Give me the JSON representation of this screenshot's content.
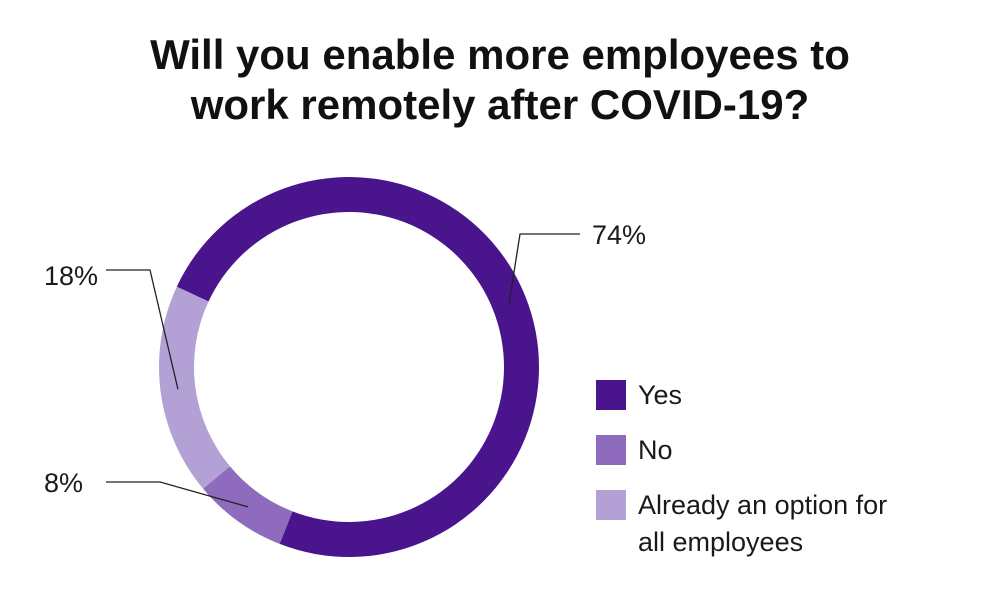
{
  "chart_data": {
    "type": "pie",
    "title_lines": [
      "Will you enable more employees to",
      "work remotely after COVID-19?"
    ],
    "slices": [
      {
        "label": "Yes",
        "value": 74,
        "value_label": "74%",
        "color": "#4a148c"
      },
      {
        "label": "No",
        "value": 8,
        "value_label": "8%",
        "color": "#8e6bbd"
      },
      {
        "label": "Already an option for all employees",
        "value": 18,
        "value_label": "18%",
        "color": "#b3a1d6"
      }
    ],
    "legend": {
      "placement": "right",
      "items": [
        {
          "lines": [
            "Yes"
          ],
          "color": "#4a148c"
        },
        {
          "lines": [
            "No"
          ],
          "color": "#8e6bbd"
        },
        {
          "lines": [
            "Already an option for",
            "all employees"
          ],
          "color": "#b3a1d6"
        }
      ]
    }
  }
}
